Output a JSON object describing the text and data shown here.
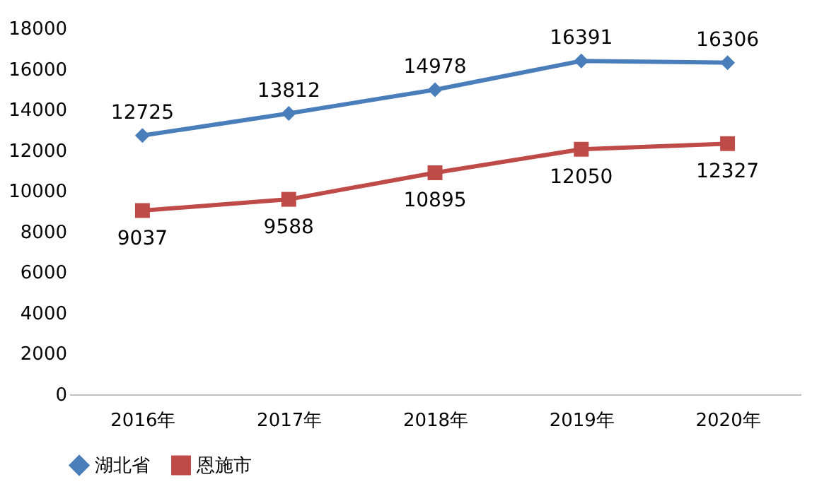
{
  "chart_data": {
    "type": "line",
    "categories": [
      "2016年",
      "2017年",
      "2018年",
      "2019年",
      "2020年"
    ],
    "series": [
      {
        "name": "湖北省",
        "color": "#4a7ebb",
        "marker": "diamond",
        "values": [
          12725,
          13812,
          14978,
          16391,
          16306
        ]
      },
      {
        "name": "恩施市",
        "color": "#be4b48",
        "marker": "square",
        "values": [
          9037,
          9588,
          10895,
          12050,
          12327
        ]
      }
    ],
    "ylim": [
      0,
      18000
    ],
    "yticks": [
      0,
      2000,
      4000,
      6000,
      8000,
      10000,
      12000,
      14000,
      16000,
      18000
    ],
    "grid": false,
    "legend": "bottom",
    "data_labels": true,
    "line_style": "solid"
  }
}
